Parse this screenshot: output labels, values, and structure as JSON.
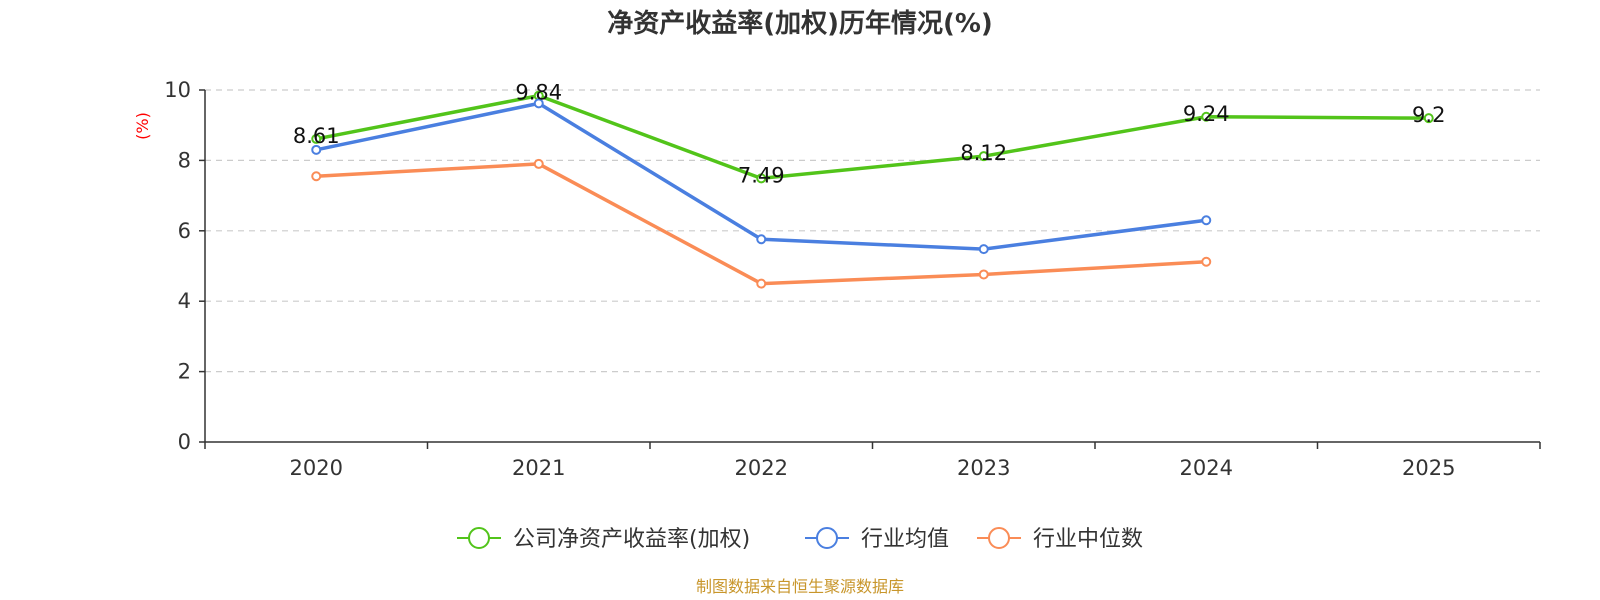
{
  "chart_data": {
    "type": "line",
    "title": "净资产收益率(加权)历年情况(%)",
    "ylabel": "(%)",
    "xlabel": "",
    "categories": [
      "2020",
      "2021",
      "2022",
      "2023",
      "2024",
      "2025"
    ],
    "ylim": [
      0,
      10
    ],
    "yticks": [
      0,
      2,
      4,
      6,
      8,
      10
    ],
    "grid": true,
    "legend_position": "bottom-center",
    "series": [
      {
        "name": "公司净资产收益率(加权)",
        "color": "#52c41a",
        "values": [
          8.61,
          9.84,
          7.49,
          8.12,
          9.24,
          9.2
        ],
        "labels": [
          "8.61",
          "9.84",
          "7.49",
          "8.12",
          "9.24",
          "9.2"
        ]
      },
      {
        "name": "行业均值",
        "color": "#4a7fe0",
        "values": [
          8.3,
          9.62,
          5.76,
          5.48,
          6.3,
          null
        ]
      },
      {
        "name": "行业中位数",
        "color": "#fa8c56",
        "values": [
          7.55,
          7.9,
          4.5,
          4.76,
          5.12,
          null
        ]
      }
    ],
    "ylabel_color": "#ff0000",
    "source": "制图数据来自恒生聚源数据库",
    "source_color": "#c8962b"
  }
}
